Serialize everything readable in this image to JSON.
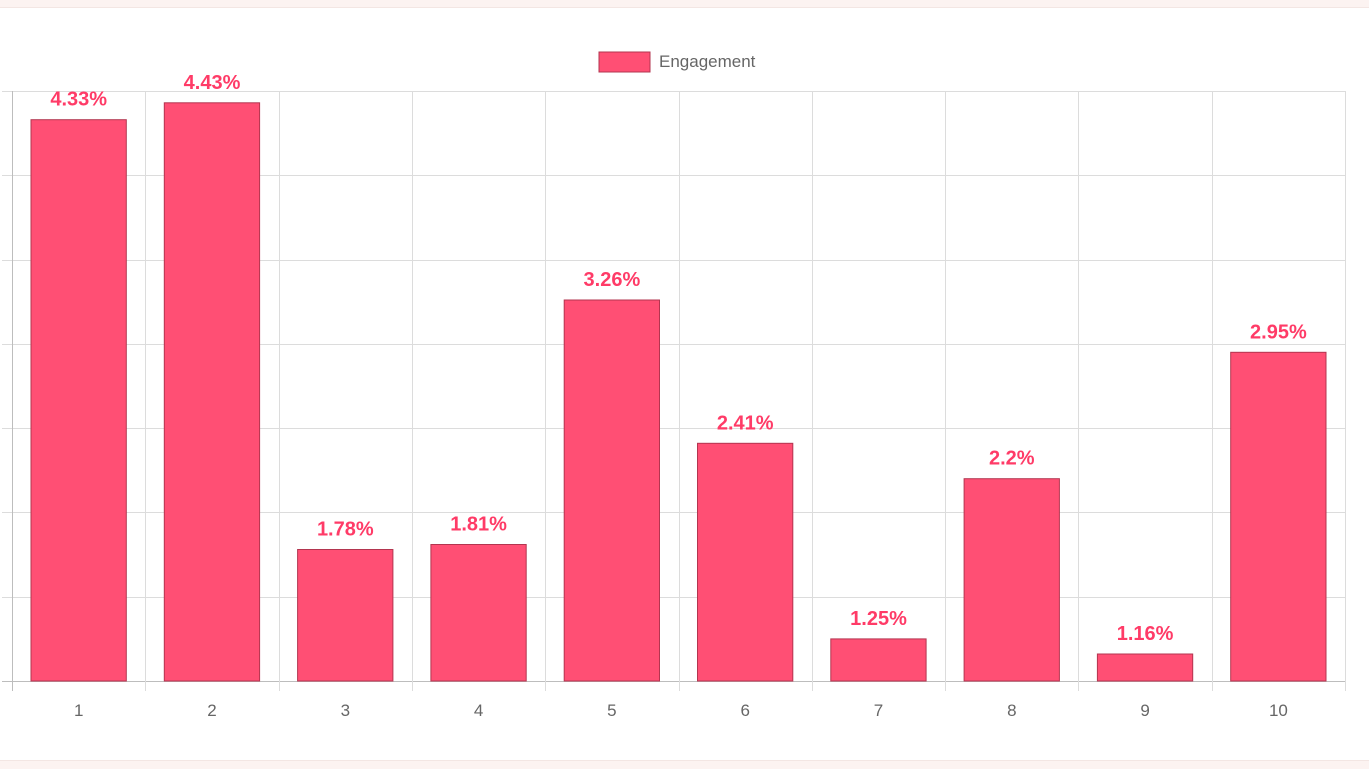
{
  "chart_data": {
    "type": "bar",
    "categories": [
      "1",
      "2",
      "3",
      "4",
      "5",
      "6",
      "7",
      "8",
      "9",
      "10"
    ],
    "series": [
      {
        "name": "Engagement",
        "values": [
          4.33,
          4.43,
          1.78,
          1.81,
          3.26,
          2.41,
          1.25,
          2.2,
          1.16,
          2.95
        ],
        "data_labels": [
          "4.33%",
          "4.43%",
          "1.78%",
          "1.81%",
          "3.26%",
          "2.41%",
          "1.25%",
          "2.2%",
          "1.16%",
          "2.95%"
        ]
      }
    ],
    "ylim": [
      1.0,
      4.5
    ],
    "ystep": 0.5,
    "grid": true,
    "y_tick_labels_visible": false,
    "legend": {
      "position": "top-center",
      "label": "Engagement"
    },
    "colors": {
      "bar_fill": "#ff4f74",
      "bar_stroke": "#b3354f",
      "data_label": "#ff3b67",
      "grid": "#dcdcdc",
      "axis": "#bdbdbd",
      "tick_text": "#666666"
    }
  }
}
